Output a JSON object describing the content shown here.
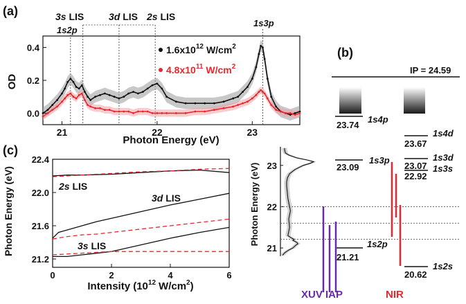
{
  "panels": {
    "a": "(a)",
    "b": "(b)",
    "c": "(c)"
  },
  "colors": {
    "black_series": "#111111",
    "red_series": "#e8262e",
    "xuv": "#6a2aa6",
    "nir": "#e8262e",
    "guide": "#7f7f7f"
  },
  "chart_data": [
    {
      "id": "a",
      "type": "line",
      "xlabel": "Photon Energy (eV)",
      "ylabel": "OD",
      "xlim": [
        20.8,
        23.5
      ],
      "ylim": [
        -0.07,
        0.47
      ],
      "xticks": [
        "21",
        "22",
        "23"
      ],
      "yticks": [
        "0.0",
        "0.2",
        "0.4"
      ],
      "legend": {
        "placement": "upper-middle"
      },
      "annotations": [
        "3s LIS",
        "3d LIS",
        "2s LIS",
        "1s2p",
        "1s3p"
      ],
      "series": [
        {
          "name": "1.6x10",
          "exponent": "12",
          "unit": "W/cm",
          "unit_exp": "2",
          "color": "#111111",
          "x": [
            20.8,
            20.85,
            20.9,
            20.95,
            21.0,
            21.03,
            21.06,
            21.09,
            21.12,
            21.15,
            21.18,
            21.21,
            21.24,
            21.27,
            21.3,
            21.35,
            21.4,
            21.45,
            21.5,
            21.55,
            21.6,
            21.65,
            21.7,
            21.75,
            21.8,
            21.85,
            21.9,
            21.95,
            22.0,
            22.05,
            22.1,
            22.2,
            22.3,
            22.4,
            22.5,
            22.6,
            22.7,
            22.8,
            22.85,
            22.9,
            22.95,
            23.0,
            23.04,
            23.07,
            23.09,
            23.11,
            23.13,
            23.16,
            23.2,
            23.25,
            23.3,
            23.35,
            23.4,
            23.45,
            23.5
          ],
          "y": [
            0.0,
            0.02,
            0.05,
            0.08,
            0.12,
            0.15,
            0.19,
            0.21,
            0.19,
            0.16,
            0.15,
            0.17,
            0.13,
            0.1,
            0.08,
            0.1,
            0.11,
            0.12,
            0.11,
            0.1,
            0.09,
            0.1,
            0.12,
            0.13,
            0.12,
            0.13,
            0.15,
            0.17,
            0.18,
            0.15,
            0.1,
            0.07,
            0.06,
            0.06,
            0.06,
            0.06,
            0.07,
            0.09,
            0.1,
            0.13,
            0.16,
            0.21,
            0.28,
            0.36,
            0.41,
            0.4,
            0.33,
            0.21,
            0.1,
            0.04,
            0.01,
            0.0,
            -0.01,
            0.0,
            0.01
          ]
        },
        {
          "name": "4.8x10",
          "exponent": "11",
          "unit": "W/cm",
          "unit_exp": "2",
          "color": "#e8262e",
          "x": [
            20.8,
            20.85,
            20.9,
            20.95,
            21.0,
            21.03,
            21.06,
            21.09,
            21.12,
            21.15,
            21.18,
            21.21,
            21.24,
            21.27,
            21.3,
            21.35,
            21.4,
            21.45,
            21.5,
            21.55,
            21.6,
            21.65,
            21.7,
            21.75,
            21.8,
            21.85,
            21.9,
            21.95,
            22.0,
            22.05,
            22.1,
            22.2,
            22.3,
            22.4,
            22.5,
            22.6,
            22.7,
            22.8,
            22.85,
            22.9,
            22.95,
            23.0,
            23.04,
            23.07,
            23.09,
            23.11,
            23.13,
            23.16,
            23.2,
            23.25,
            23.3,
            23.35,
            23.4,
            23.45,
            23.5
          ],
          "y": [
            -0.02,
            0.0,
            0.02,
            0.04,
            0.07,
            0.09,
            0.11,
            0.12,
            0.1,
            0.09,
            0.11,
            0.12,
            0.08,
            0.05,
            0.04,
            0.03,
            0.03,
            0.02,
            0.02,
            0.01,
            0.01,
            0.01,
            0.01,
            0.0,
            0.01,
            0.01,
            0.01,
            0.0,
            0.0,
            0.0,
            0.0,
            0.0,
            0.0,
            0.01,
            0.01,
            0.02,
            0.03,
            0.04,
            0.05,
            0.06,
            0.07,
            0.09,
            0.11,
            0.13,
            0.14,
            0.13,
            0.12,
            0.09,
            0.05,
            0.02,
            0.01,
            0.0,
            0.0,
            -0.01,
            0.0
          ]
        }
      ]
    },
    {
      "id": "c",
      "type": "line",
      "xlabel": "Intensity (10",
      "xlabel_exp": "12",
      "xlabel_unit": "W/cm",
      "xlabel_unit_exp": "2",
      "xlabel_close": ")",
      "ylabel": "Photon Energy (eV)",
      "xlim": [
        0,
        6
      ],
      "ylim": [
        21.1,
        22.4
      ],
      "xticks": [
        "0",
        "2",
        "4",
        "6"
      ],
      "yticks": [
        "21.2",
        "21.6",
        "22.0",
        "22.4"
      ],
      "annotations": [
        "2s LIS",
        "3d LIS",
        "3s LIS"
      ],
      "series": [
        {
          "label": "2s-solid",
          "style": "solid",
          "color": "#111111",
          "x": [
            0,
            0.5,
            1,
            2,
            3,
            4,
            5,
            6
          ],
          "y": [
            22.2,
            22.21,
            22.21,
            22.22,
            22.24,
            22.26,
            22.27,
            22.24
          ]
        },
        {
          "label": "2s-dashed",
          "style": "dashed",
          "color": "#e8262e",
          "x": [
            0,
            0.5,
            1,
            2,
            3,
            4,
            5,
            6
          ],
          "y": [
            22.19,
            22.2,
            22.21,
            22.23,
            22.25,
            22.26,
            22.28,
            22.29
          ]
        },
        {
          "label": "3d-solid",
          "style": "solid",
          "color": "#111111",
          "x": [
            0,
            0.2,
            0.5,
            1,
            1.5,
            2,
            3,
            4,
            5,
            6
          ],
          "y": [
            21.45,
            21.52,
            21.55,
            21.6,
            21.65,
            21.69,
            21.77,
            21.85,
            21.92,
            21.99
          ]
        },
        {
          "label": "3d-dashed",
          "style": "dashed",
          "color": "#e8262e",
          "x": [
            0,
            0.5,
            1,
            1.5,
            2,
            3,
            4,
            5,
            6
          ],
          "y": [
            21.44,
            21.47,
            21.49,
            21.5,
            21.52,
            21.56,
            21.6,
            21.64,
            21.68
          ]
        },
        {
          "label": "3s-solid",
          "style": "solid",
          "color": "#111111",
          "x": [
            0,
            0.5,
            1,
            2,
            3,
            4,
            5,
            6
          ],
          "y": [
            21.23,
            21.23,
            21.25,
            21.29,
            21.37,
            21.45,
            21.52,
            21.58
          ]
        },
        {
          "label": "3s-dashed",
          "style": "dashed",
          "color": "#e8262e",
          "x": [
            0,
            1,
            2,
            3,
            4,
            5,
            6
          ],
          "y": [
            21.25,
            21.27,
            21.29,
            21.29,
            21.29,
            21.29,
            21.29
          ]
        }
      ]
    }
  ],
  "level_diagram": {
    "ip_label": "IP = 24.59",
    "levels_left": [
      {
        "energy": "23.74",
        "name": "1s4p"
      },
      {
        "energy": "23.09",
        "name": "1s3p"
      },
      {
        "energy": "21.21",
        "name": "1s2p"
      }
    ],
    "levels_right": [
      {
        "energy": "23.67",
        "name": "1s4d"
      },
      {
        "energy": "23.07",
        "name": "1s3d"
      },
      {
        "energy": "22.92",
        "name": "1s3s"
      },
      {
        "energy": "20.62",
        "name": "1s2s"
      }
    ],
    "inset": {
      "ylabel": "Photon Energy (eV)",
      "yticks": [
        "21",
        "22",
        "23"
      ],
      "ylim": [
        20.8,
        23.45
      ],
      "x": [
        0.05,
        0.1,
        0.2,
        0.3,
        0.35,
        0.4,
        0.42,
        0.4,
        0.35,
        0.3,
        0.33,
        0.25,
        0.18,
        0.2,
        0.22,
        0.21,
        0.2,
        0.22,
        0.24,
        0.22,
        0.2,
        0.18,
        0.17,
        0.16,
        0.15,
        0.15,
        0.17,
        0.22,
        0.35,
        0.55,
        0.72,
        0.8,
        0.65,
        0.4,
        0.2,
        0.12,
        0.1,
        0.1
      ],
      "y": [
        20.82,
        20.88,
        20.95,
        21.0,
        21.05,
        21.09,
        21.1,
        21.13,
        21.16,
        21.18,
        21.21,
        21.25,
        21.3,
        21.4,
        21.5,
        21.6,
        21.7,
        21.8,
        21.9,
        22.0,
        22.1,
        22.2,
        22.3,
        22.4,
        22.5,
        22.6,
        22.7,
        22.8,
        22.9,
        23.0,
        23.05,
        23.09,
        23.13,
        23.18,
        23.25,
        23.3,
        23.38,
        23.42
      ]
    },
    "xuv_label": "XUV IAP",
    "nir_label": "NIR"
  }
}
